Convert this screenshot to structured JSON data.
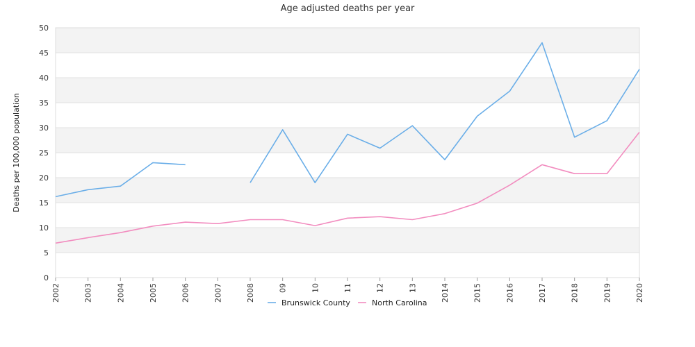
{
  "chart_data": {
    "type": "line",
    "title": "Age adjusted deaths per year",
    "xlabel": "",
    "ylabel": "Deaths per 100,000 population",
    "ylim": [
      0,
      50
    ],
    "yticks": [
      0,
      5,
      10,
      15,
      20,
      25,
      30,
      35,
      40,
      45,
      50
    ],
    "grid": "horizontal alternating bands",
    "legend_position": "bottom",
    "categories": [
      "2002",
      "2003",
      "2004",
      "2005",
      "2006",
      "2007",
      "2008",
      "09",
      "10",
      "11",
      "12",
      "13",
      "2014",
      "2015",
      "2016",
      "2017",
      "2018",
      "2019",
      "2020"
    ],
    "series": [
      {
        "name": "Brunswick County",
        "color": "#6aaee8",
        "values": [
          16.2,
          17.6,
          18.3,
          23.0,
          22.6,
          null,
          19.0,
          29.6,
          19.0,
          28.7,
          25.9,
          30.4,
          23.6,
          32.3,
          37.3,
          47.0,
          28.1,
          31.4,
          41.7
        ]
      },
      {
        "name": "North Carolina",
        "color": "#f28cbf",
        "values": [
          6.9,
          8.0,
          9.0,
          10.3,
          11.1,
          10.8,
          11.6,
          11.6,
          10.4,
          11.9,
          12.2,
          11.6,
          12.8,
          14.9,
          18.5,
          22.6,
          20.8,
          20.8,
          29.1
        ]
      }
    ]
  }
}
